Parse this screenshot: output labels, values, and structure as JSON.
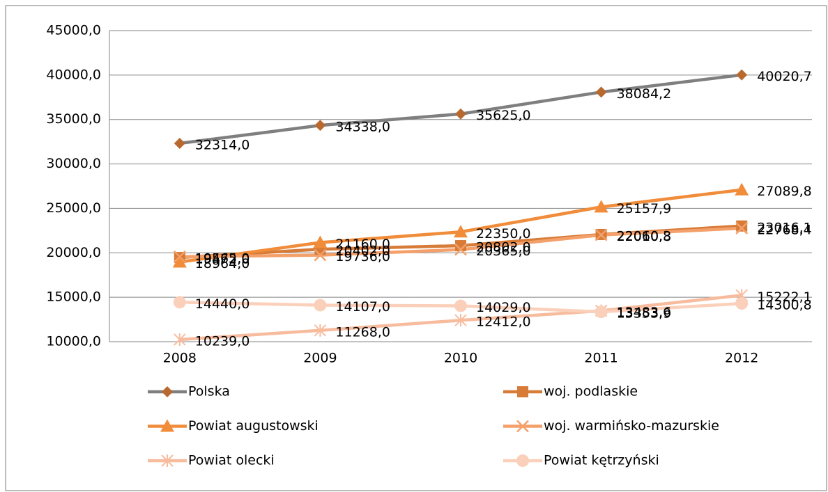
{
  "chart_data": {
    "type": "line",
    "categories": [
      "2008",
      "2009",
      "2010",
      "2011",
      "2012"
    ],
    "ylim": [
      10000,
      45000
    ],
    "yticks": [
      {
        "value": 10000,
        "label": "10000,0"
      },
      {
        "value": 15000,
        "label": "15000,0"
      },
      {
        "value": 20000,
        "label": "20000,0"
      },
      {
        "value": 25000,
        "label": "25000,0"
      },
      {
        "value": 30000,
        "label": "30000,0"
      },
      {
        "value": 35000,
        "label": "35000,0"
      },
      {
        "value": 40000,
        "label": "40000,0"
      },
      {
        "value": 45000,
        "label": "45000,0"
      }
    ],
    "grid": true,
    "legend": "bottom",
    "series": [
      {
        "name": "Polska",
        "color": "#7f7f7f",
        "marker_color": "#b8692f",
        "marker": "diamond",
        "values": [
          32314.0,
          34338.0,
          35625.0,
          38084.2,
          40020.7
        ],
        "value_labels": [
          "32314,0",
          "34338,0",
          "35625,0",
          "38084,2",
          "40020,7"
        ]
      },
      {
        "name": "woj. podlaskie",
        "color": "#d77b38",
        "marker_color": "#d77b38",
        "marker": "square",
        "values": [
          19472.0,
          20402.0,
          20802.0,
          22060.3,
          23016.1
        ],
        "value_labels": [
          "19472,0",
          "20402,0",
          "20802,0",
          "22060,3",
          "23016,1"
        ]
      },
      {
        "name": "Powiat augustowski",
        "color": "#f08c3a",
        "marker_color": "#f08c3a",
        "marker": "triangle",
        "values": [
          18964.0,
          21160.0,
          22350.0,
          25157.9,
          27089.8
        ],
        "value_labels": [
          "18964,0",
          "21160,0",
          "22350,0",
          "25157,9",
          "27089,8"
        ]
      },
      {
        "name": "woj. warmińsko-mazurskie",
        "color": "#f4a06a",
        "marker_color": "#f4a06a",
        "marker": "x",
        "values": [
          19565.0,
          19736.0,
          20365.0,
          22010.8,
          22768.4
        ],
        "value_labels": [
          "19565,0",
          "19736,0",
          "20365,0",
          "22010,8",
          "22768,4"
        ]
      },
      {
        "name": "Powiat olecki",
        "color": "#f7bc9e",
        "marker_color": "#f7bc9e",
        "marker": "star",
        "values": [
          10239.0,
          11268.0,
          12412.0,
          13483.6,
          15222.1
        ],
        "value_labels": [
          "10239,0",
          "11268,0",
          "12412,0",
          "13483,6",
          "15222,1"
        ]
      },
      {
        "name": "Powiat kętrzyński",
        "color": "#fbd0bb",
        "marker_color": "#fbd0bb",
        "marker": "circle",
        "values": [
          14440.0,
          14107.0,
          14029.0,
          13353.9,
          14300.8
        ],
        "value_labels": [
          "14440,0",
          "14107,0",
          "14029,0",
          "13353,9",
          "14300,8"
        ]
      }
    ]
  }
}
